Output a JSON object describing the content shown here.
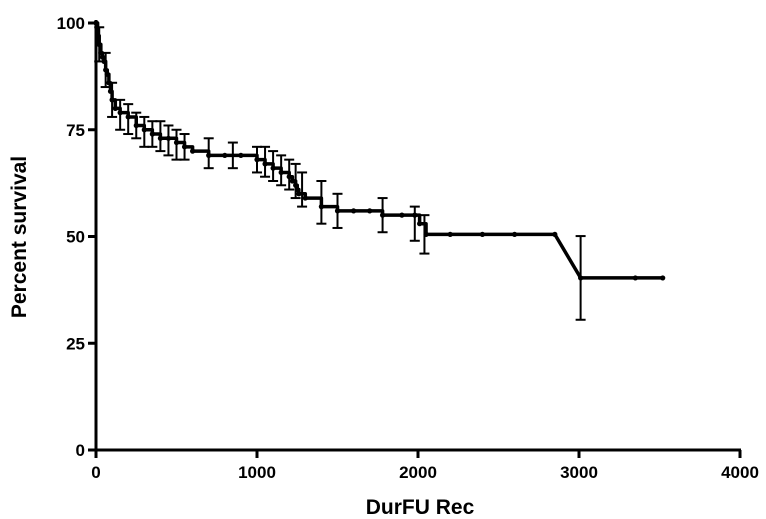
{
  "chart_data": {
    "type": "line",
    "style": "step",
    "xlabel": "DurFU Rec",
    "ylabel": "Percent survival",
    "xlim": [
      0,
      4000
    ],
    "ylim": [
      0,
      100
    ],
    "xticks": [
      0,
      1000,
      2000,
      3000,
      4000
    ],
    "yticks": [
      0,
      25,
      50,
      75,
      100
    ],
    "grid": false,
    "color": "#000000",
    "series": [
      {
        "x": [
          0,
          10,
          20,
          30,
          40,
          50,
          60,
          70,
          80,
          90,
          100,
          120,
          150,
          200,
          250,
          300,
          350,
          400,
          450,
          500,
          550,
          600,
          700,
          800,
          900,
          1000,
          1050,
          1100,
          1150,
          1200,
          1220,
          1240,
          1250,
          1260,
          1300,
          1400,
          1500,
          1600,
          1700,
          1780,
          1900,
          1980,
          2010,
          2050,
          2200,
          2400,
          2600,
          2850,
          3010,
          3350,
          3520
        ],
        "y": [
          100,
          97,
          95,
          93,
          92,
          91,
          89,
          88,
          86,
          84,
          82,
          80,
          79,
          78,
          76,
          75,
          74,
          73,
          73,
          72,
          71,
          70,
          69,
          69,
          69,
          68,
          67,
          66,
          65,
          64,
          63,
          62,
          61,
          60,
          59,
          57,
          56,
          56,
          56,
          55,
          55,
          55,
          53,
          50.5,
          50.5,
          50.5,
          50.5,
          50.5,
          40.3,
          40.3,
          40.3
        ]
      }
    ],
    "error_bars": [
      {
        "x": 20,
        "lo": 91,
        "hi": 99
      },
      {
        "x": 60,
        "lo": 85,
        "hi": 93
      },
      {
        "x": 100,
        "lo": 78,
        "hi": 86
      },
      {
        "x": 150,
        "lo": 75,
        "hi": 82
      },
      {
        "x": 200,
        "lo": 74,
        "hi": 81
      },
      {
        "x": 250,
        "lo": 73,
        "hi": 79
      },
      {
        "x": 300,
        "lo": 71,
        "hi": 78
      },
      {
        "x": 350,
        "lo": 71,
        "hi": 77
      },
      {
        "x": 400,
        "lo": 70,
        "hi": 77
      },
      {
        "x": 450,
        "lo": 69,
        "hi": 76
      },
      {
        "x": 500,
        "lo": 68,
        "hi": 75
      },
      {
        "x": 550,
        "lo": 68,
        "hi": 74
      },
      {
        "x": 700,
        "lo": 66,
        "hi": 73
      },
      {
        "x": 850,
        "lo": 66,
        "hi": 72
      },
      {
        "x": 1000,
        "lo": 65,
        "hi": 71
      },
      {
        "x": 1050,
        "lo": 64,
        "hi": 71
      },
      {
        "x": 1100,
        "lo": 63,
        "hi": 70
      },
      {
        "x": 1150,
        "lo": 62,
        "hi": 69
      },
      {
        "x": 1200,
        "lo": 61,
        "hi": 68
      },
      {
        "x": 1240,
        "lo": 59,
        "hi": 67
      },
      {
        "x": 1280,
        "lo": 57,
        "hi": 65
      },
      {
        "x": 1400,
        "lo": 53,
        "hi": 63
      },
      {
        "x": 1500,
        "lo": 52,
        "hi": 60
      },
      {
        "x": 1780,
        "lo": 51,
        "hi": 59
      },
      {
        "x": 1980,
        "lo": 49,
        "hi": 57
      },
      {
        "x": 2040,
        "lo": 46,
        "hi": 55
      },
      {
        "x": 3010,
        "lo": 30.5,
        "hi": 50.1
      }
    ]
  }
}
